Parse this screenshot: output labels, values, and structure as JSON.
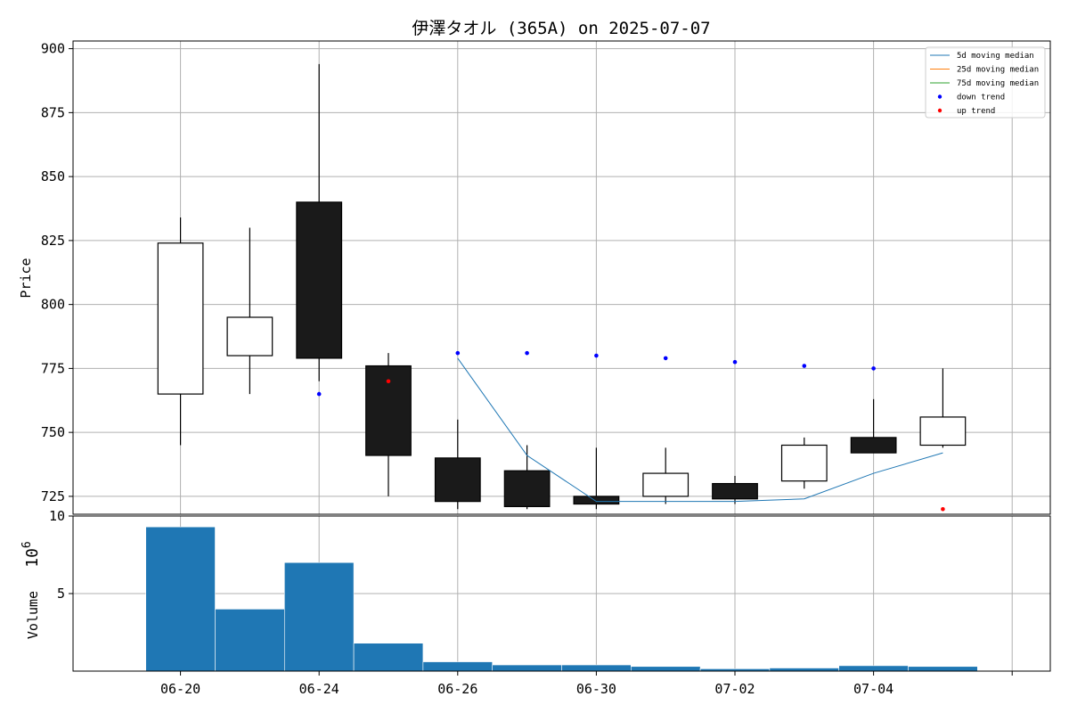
{
  "chart_data": {
    "type": "candlestick",
    "title": "伊澤タオル (365A) on 2025-07-07",
    "price_panel": {
      "ylabel": "Price",
      "ylim": [
        718,
        903
      ],
      "yticks": [
        725,
        750,
        775,
        800,
        825,
        850,
        875,
        900
      ]
    },
    "volume_panel": {
      "ylabel": "Volume",
      "scale_label": "10",
      "scale_exp": "6",
      "ylim": [
        0,
        10
      ],
      "yticks": [
        5,
        10
      ]
    },
    "x_ticks": [
      {
        "i": 0,
        "label": "06-20"
      },
      {
        "i": 2,
        "label": "06-24"
      },
      {
        "i": 4,
        "label": "06-26"
      },
      {
        "i": 6,
        "label": "06-30"
      },
      {
        "i": 8,
        "label": "07-02"
      },
      {
        "i": 10,
        "label": "07-04"
      },
      {
        "i": 12,
        "label": ""
      }
    ],
    "x_range": [
      -1.55,
      12.55
    ],
    "candles": [
      {
        "i": 0,
        "open": 765,
        "high": 834,
        "low": 745,
        "close": 824,
        "volume": 9.3
      },
      {
        "i": 1,
        "open": 780,
        "high": 830,
        "low": 765,
        "close": 795,
        "volume": 4.0
      },
      {
        "i": 2,
        "open": 840,
        "high": 894,
        "low": 770,
        "close": 779,
        "volume": 7.0
      },
      {
        "i": 3,
        "open": 776,
        "high": 781,
        "low": 725,
        "close": 741,
        "volume": 1.8
      },
      {
        "i": 4,
        "open": 740,
        "high": 755,
        "low": 720,
        "close": 723,
        "volume": 0.6
      },
      {
        "i": 5,
        "open": 735,
        "high": 745,
        "low": 720,
        "close": 721,
        "volume": 0.4
      },
      {
        "i": 6,
        "open": 725,
        "high": 744,
        "low": 720,
        "close": 722,
        "volume": 0.4
      },
      {
        "i": 7,
        "open": 725,
        "high": 744,
        "low": 722,
        "close": 734,
        "volume": 0.3
      },
      {
        "i": 8,
        "open": 730,
        "high": 733,
        "low": 722,
        "close": 724,
        "volume": 0.15
      },
      {
        "i": 9,
        "open": 731,
        "high": 748,
        "low": 728,
        "close": 745,
        "volume": 0.2
      },
      {
        "i": 10,
        "open": 748,
        "high": 763,
        "low": 742,
        "close": 742,
        "volume": 0.35
      },
      {
        "i": 11,
        "open": 745,
        "high": 775,
        "low": 744,
        "close": 756,
        "volume": 0.3
      }
    ],
    "moving_median_5d": [
      {
        "i": 4,
        "value": 779
      },
      {
        "i": 5,
        "value": 741
      },
      {
        "i": 6,
        "value": 723
      },
      {
        "i": 7,
        "value": 723
      },
      {
        "i": 8,
        "value": 723
      },
      {
        "i": 9,
        "value": 724
      },
      {
        "i": 10,
        "value": 734
      },
      {
        "i": 11,
        "value": 742
      }
    ],
    "down_trend": [
      {
        "i": 2,
        "value": 765
      },
      {
        "i": 4,
        "value": 781
      },
      {
        "i": 5,
        "value": 781
      },
      {
        "i": 6,
        "value": 780
      },
      {
        "i": 7,
        "value": 779
      },
      {
        "i": 8,
        "value": 777.5
      },
      {
        "i": 9,
        "value": 776
      },
      {
        "i": 10,
        "value": 775
      }
    ],
    "up_trend": [
      {
        "i": 3,
        "value": 770
      },
      {
        "i": 11,
        "value": 720
      }
    ],
    "legend": {
      "placement": "top-right",
      "entries": [
        {
          "label": "5d moving median",
          "kind": "line",
          "color": "#1f77b4"
        },
        {
          "label": "25d moving median",
          "kind": "line",
          "color": "#ff7f0e"
        },
        {
          "label": "75d moving median",
          "kind": "line",
          "color": "#2ca02c"
        },
        {
          "label": "down trend",
          "kind": "dot",
          "color": "#0000ff"
        },
        {
          "label": "up trend",
          "kind": "dot",
          "color": "#ff0000"
        }
      ]
    },
    "colors": {
      "down_candle": "#1a1a1a",
      "up_candle": "#ffffff",
      "volume_bar": "#1f77b4",
      "grid": "#b0b0b0"
    },
    "grid": true
  }
}
